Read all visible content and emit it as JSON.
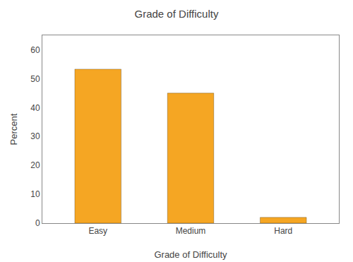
{
  "chart_data": {
    "type": "bar",
    "title": "Grade of Difficulty",
    "xlabel": "Grade of Difficulty",
    "ylabel": "Percent",
    "categories": [
      "Easy",
      "Medium",
      "Hard"
    ],
    "values": [
      53.3,
      45.0,
      2.0
    ],
    "color": "#F5A623",
    "ylim": [
      0,
      65
    ],
    "yticks": [
      0,
      10,
      20,
      30,
      40,
      50,
      60
    ],
    "grid": false
  }
}
